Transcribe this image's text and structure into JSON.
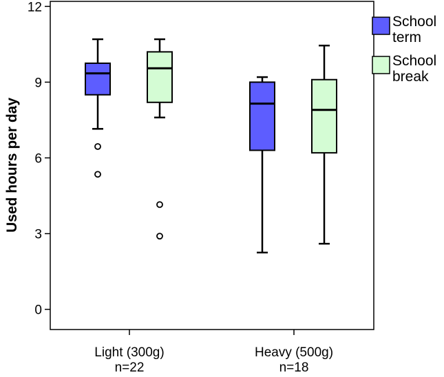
{
  "chart_data": {
    "type": "boxplot",
    "title": "",
    "xlabel": "",
    "ylabel": "Used hours per day",
    "ylim": [
      -0.8,
      12.2
    ],
    "yticks": [
      0,
      3,
      6,
      9,
      12
    ],
    "grid": false,
    "legend_position": "right",
    "categories": [
      {
        "label_line1": "Light (300g)",
        "label_line2": "n=22"
      },
      {
        "label_line1": "Heavy (500g)",
        "label_line2": "n=18"
      }
    ],
    "series": [
      {
        "name_line1": "School",
        "name_line2": "term",
        "color": "#5d5dff",
        "boxes": [
          {
            "whisker_low": 7.15,
            "q1": 8.5,
            "median": 9.35,
            "q3": 9.75,
            "whisker_high": 10.7,
            "outliers": [
              6.45,
              5.35
            ]
          },
          {
            "whisker_low": 2.25,
            "q1": 6.3,
            "median": 8.15,
            "q3": 9.0,
            "whisker_high": 9.2,
            "outliers": []
          }
        ]
      },
      {
        "name_line1": "School",
        "name_line2": "break",
        "color": "#d4fcd4",
        "boxes": [
          {
            "whisker_low": 7.6,
            "q1": 8.2,
            "median": 9.55,
            "q3": 10.2,
            "whisker_high": 10.7,
            "outliers": [
              4.15,
              2.9
            ]
          },
          {
            "whisker_low": 2.6,
            "q1": 6.2,
            "median": 7.9,
            "q3": 9.1,
            "whisker_high": 10.45,
            "outliers": []
          }
        ]
      }
    ]
  }
}
